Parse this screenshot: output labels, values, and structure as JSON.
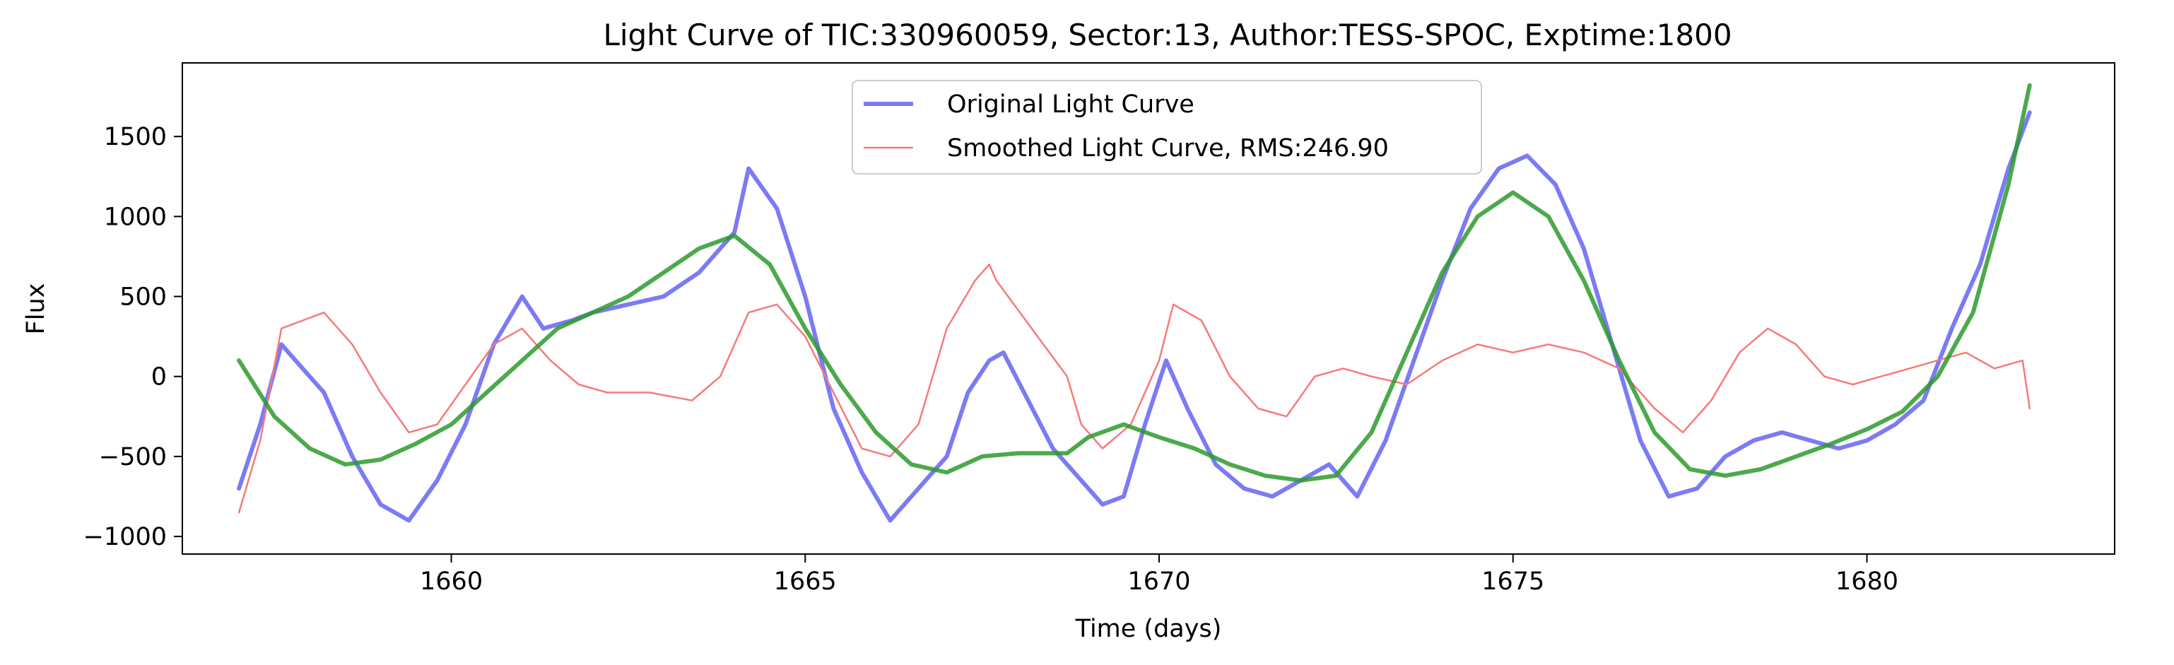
{
  "chart_data": {
    "type": "line",
    "title": "Light Curve of TIC:330960059, Sector:13, Author:TESS-SPOC, Exptime:1800",
    "xlabel": "Time (days)",
    "ylabel": "Flux",
    "xlim": [
      1656.2,
      1683.5
    ],
    "ylim": [
      -1110,
      1960
    ],
    "xticks": [
      1660,
      1665,
      1670,
      1675,
      1680
    ],
    "yticks": [
      -1000,
      -500,
      0,
      500,
      1000,
      1500
    ],
    "grid": false,
    "legend": {
      "placement": "top-center",
      "entries": [
        "Original Light Curve",
        "Smoothed Light Curve, RMS:246.90"
      ]
    },
    "series": [
      {
        "name": "Original Light Curve",
        "color": "#7b7bf5",
        "x": [
          1657.0,
          1657.3,
          1657.6,
          1657.8,
          1658.2,
          1658.6,
          1659.0,
          1659.4,
          1659.8,
          1660.2,
          1660.6,
          1661.0,
          1661.3,
          1661.7,
          1662.0,
          1662.5,
          1663.0,
          1663.5,
          1664.0,
          1664.2,
          1664.6,
          1665.0,
          1665.4,
          1665.8,
          1666.2,
          1666.6,
          1667.0,
          1667.3,
          1667.6,
          1667.8,
          1668.5,
          1668.8,
          1669.2,
          1669.5,
          1669.8,
          1670.1,
          1670.4,
          1670.8,
          1671.2,
          1671.6,
          1672.0,
          1672.4,
          1672.8,
          1673.2,
          1673.6,
          1674.0,
          1674.4,
          1674.8,
          1675.2,
          1675.6,
          1676.0,
          1676.4,
          1676.8,
          1677.2,
          1677.6,
          1678.0,
          1678.4,
          1678.8,
          1679.2,
          1679.6,
          1680.0,
          1680.4,
          1680.8,
          1681.2,
          1681.6,
          1682.0,
          1682.3
        ],
        "values": [
          -700,
          -300,
          200,
          100,
          -100,
          -500,
          -800,
          -900,
          -650,
          -300,
          200,
          500,
          300,
          350,
          400,
          450,
          500,
          650,
          900,
          1300,
          1050,
          500,
          -200,
          -600,
          -900,
          -700,
          -500,
          -100,
          100,
          150,
          -450,
          -600,
          -800,
          -750,
          -300,
          100,
          -200,
          -550,
          -700,
          -750,
          -650,
          -550,
          -750,
          -400,
          100,
          600,
          1050,
          1300,
          1380,
          1200,
          800,
          200,
          -400,
          -750,
          -700,
          -500,
          -400,
          -350,
          -400,
          -450,
          -400,
          -300,
          -150,
          300,
          700,
          1300,
          1650
        ]
      },
      {
        "name": "Smoothed Light Curve, RMS:246.90",
        "color": "#f67a7a",
        "x": [
          1657.0,
          1657.3,
          1657.6,
          1657.9,
          1658.2,
          1658.6,
          1659.0,
          1659.4,
          1659.8,
          1660.2,
          1660.6,
          1661.0,
          1661.4,
          1661.8,
          1662.2,
          1662.8,
          1663.4,
          1663.8,
          1664.2,
          1664.6,
          1665.0,
          1665.4,
          1665.8,
          1666.2,
          1666.6,
          1667.0,
          1667.4,
          1667.6,
          1667.7,
          1668.7,
          1668.9,
          1669.2,
          1669.6,
          1670.0,
          1670.2,
          1670.6,
          1671.0,
          1671.4,
          1671.8,
          1672.2,
          1672.6,
          1673.0,
          1673.5,
          1674.0,
          1674.5,
          1675.0,
          1675.5,
          1676.0,
          1676.5,
          1677.0,
          1677.4,
          1677.8,
          1678.2,
          1678.6,
          1679.0,
          1679.4,
          1679.8,
          1680.2,
          1680.6,
          1681.0,
          1681.4,
          1681.8,
          1682.2,
          1682.3
        ],
        "values": [
          -850,
          -400,
          300,
          350,
          400,
          200,
          -100,
          -350,
          -300,
          -50,
          200,
          300,
          100,
          -50,
          -100,
          -100,
          -150,
          0,
          400,
          450,
          250,
          -100,
          -450,
          -500,
          -300,
          300,
          600,
          700,
          600,
          0,
          -300,
          -450,
          -300,
          100,
          450,
          350,
          0,
          -200,
          -250,
          0,
          50,
          0,
          -50,
          100,
          200,
          150,
          200,
          150,
          50,
          -200,
          -350,
          -150,
          150,
          300,
          200,
          0,
          -50,
          0,
          50,
          100,
          150,
          50,
          100,
          -200
        ]
      },
      {
        "name": "",
        "color": "#2d9a2d",
        "x": [
          1657.0,
          1657.5,
          1658.0,
          1658.5,
          1659.0,
          1659.5,
          1660.0,
          1660.5,
          1661.0,
          1661.5,
          1662.0,
          1662.5,
          1663.0,
          1663.5,
          1664.0,
          1664.5,
          1665.0,
          1665.5,
          1666.0,
          1666.5,
          1667.0,
          1667.5,
          1668.0,
          1668.7,
          1669.0,
          1669.5,
          1670.0,
          1670.5,
          1671.0,
          1671.5,
          1672.0,
          1672.5,
          1673.0,
          1673.5,
          1674.0,
          1674.5,
          1675.0,
          1675.5,
          1676.0,
          1676.5,
          1677.0,
          1677.5,
          1678.0,
          1678.5,
          1679.0,
          1679.5,
          1680.0,
          1680.5,
          1681.0,
          1681.5,
          1682.0,
          1682.3
        ],
        "values": [
          100,
          -250,
          -450,
          -550,
          -520,
          -420,
          -300,
          -100,
          100,
          300,
          400,
          500,
          650,
          800,
          880,
          700,
          300,
          -50,
          -350,
          -550,
          -600,
          -500,
          -480,
          -480,
          -380,
          -300,
          -380,
          -450,
          -550,
          -620,
          -650,
          -620,
          -350,
          150,
          650,
          1000,
          1150,
          1000,
          600,
          100,
          -350,
          -580,
          -620,
          -580,
          -500,
          -420,
          -330,
          -220,
          0,
          400,
          1200,
          1820
        ]
      }
    ]
  }
}
